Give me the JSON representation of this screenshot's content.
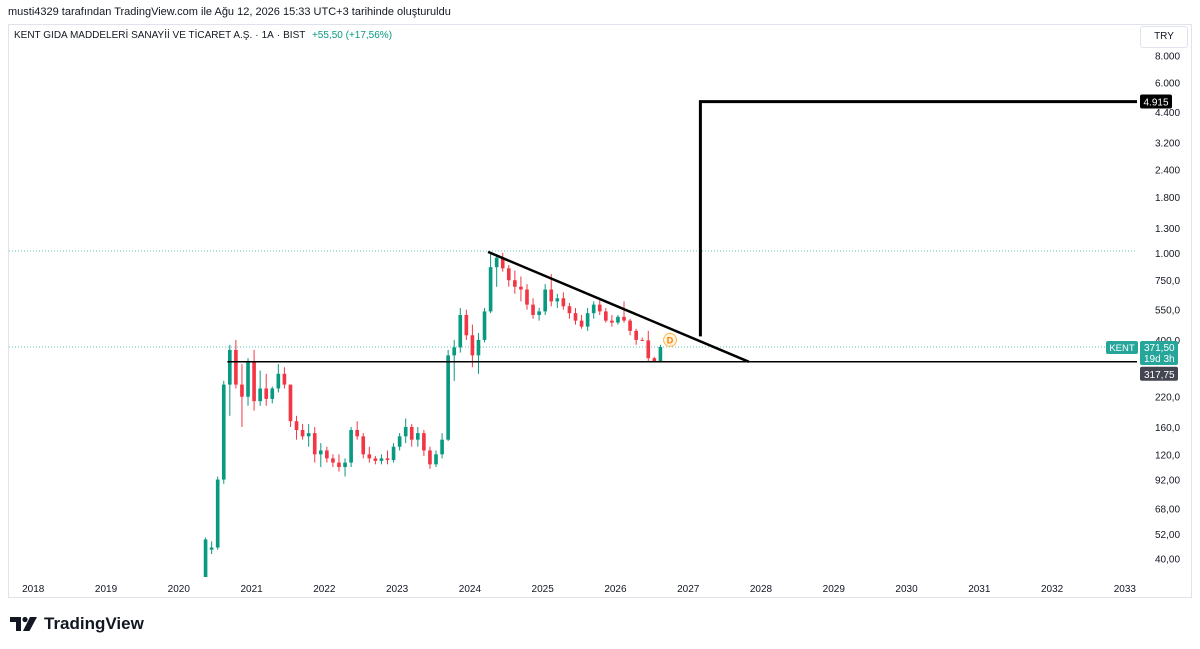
{
  "header": {
    "text": "musti4329 tarafından TradingView.com ile Ağu 12, 2026 15:33 UTC+3 tarihinde oluşturuldu"
  },
  "legend": {
    "title": "KENT GIDA MADDELERİ SANAYİİ VE TİCARET A.Ş.",
    "interval": "1A",
    "exchange": "BIST",
    "change": "+55,50 (+17,56%)"
  },
  "currency_button": "TRY",
  "footer": {
    "brand": "TradingView"
  },
  "colors": {
    "up": "#089981",
    "down": "#f23645",
    "drawing": "#000000",
    "price_line": "#26a69a"
  },
  "price_labels": {
    "symbol": "KENT",
    "last_price": "371,50",
    "countdown": "19d 3h",
    "support": "317,75",
    "target": "4.915",
    "marker": "D"
  },
  "chart_data": {
    "type": "candlestick",
    "y_scale": "log",
    "ylim": [
      33,
      11000
    ],
    "xlim": [
      "2017-09",
      "2033-03"
    ],
    "x_ticks": [
      "2018",
      "2019",
      "2020",
      "2021",
      "2022",
      "2023",
      "2024",
      "2025",
      "2026",
      "2027",
      "2028",
      "2029",
      "2030",
      "2031",
      "2032",
      "2033"
    ],
    "y_ticks": [
      {
        "v": 8000,
        "label": "8.000"
      },
      {
        "v": 6000,
        "label": "6.000"
      },
      {
        "v": 4400,
        "label": "4.400"
      },
      {
        "v": 3200,
        "label": "3.200"
      },
      {
        "v": 2400,
        "label": "2.400"
      },
      {
        "v": 1800,
        "label": "1.800"
      },
      {
        "v": 1300,
        "label": "1.300"
      },
      {
        "v": 1000,
        "label": "1.000"
      },
      {
        "v": 750,
        "label": "750,0"
      },
      {
        "v": 550,
        "label": "550,0"
      },
      {
        "v": 400,
        "label": "400,0"
      },
      {
        "v": 220,
        "label": "220,0"
      },
      {
        "v": 160,
        "label": "160,0"
      },
      {
        "v": 120,
        "label": "120,0"
      },
      {
        "v": 92,
        "label": "92,00"
      },
      {
        "v": 68,
        "label": "68,00"
      },
      {
        "v": 52,
        "label": "52,00"
      },
      {
        "v": 40,
        "label": "40,00"
      }
    ],
    "candles": [
      {
        "d": "2020-05",
        "o": 33,
        "h": 50,
        "l": 33,
        "c": 49
      },
      {
        "d": "2020-06",
        "o": 44,
        "h": 48,
        "l": 42,
        "c": 45
      },
      {
        "d": "2020-07",
        "o": 45,
        "h": 95,
        "l": 44,
        "c": 92
      },
      {
        "d": "2020-08",
        "o": 92,
        "h": 260,
        "l": 88,
        "c": 250
      },
      {
        "d": "2020-09",
        "o": 250,
        "h": 380,
        "l": 180,
        "c": 360
      },
      {
        "d": "2020-10",
        "o": 360,
        "h": 400,
        "l": 240,
        "c": 250
      },
      {
        "d": "2020-11",
        "o": 250,
        "h": 310,
        "l": 160,
        "c": 220
      },
      {
        "d": "2020-12",
        "o": 220,
        "h": 330,
        "l": 200,
        "c": 320
      },
      {
        "d": "2021-01",
        "o": 320,
        "h": 360,
        "l": 190,
        "c": 210
      },
      {
        "d": "2021-02",
        "o": 210,
        "h": 290,
        "l": 200,
        "c": 240
      },
      {
        "d": "2021-03",
        "o": 240,
        "h": 280,
        "l": 200,
        "c": 215
      },
      {
        "d": "2021-04",
        "o": 215,
        "h": 245,
        "l": 205,
        "c": 240
      },
      {
        "d": "2021-05",
        "o": 240,
        "h": 310,
        "l": 230,
        "c": 280
      },
      {
        "d": "2021-06",
        "o": 280,
        "h": 300,
        "l": 240,
        "c": 250
      },
      {
        "d": "2021-07",
        "o": 250,
        "h": 250,
        "l": 160,
        "c": 170
      },
      {
        "d": "2021-08",
        "o": 170,
        "h": 180,
        "l": 140,
        "c": 155
      },
      {
        "d": "2021-09",
        "o": 155,
        "h": 165,
        "l": 140,
        "c": 145
      },
      {
        "d": "2021-10",
        "o": 145,
        "h": 165,
        "l": 130,
        "c": 150
      },
      {
        "d": "2021-11",
        "o": 150,
        "h": 160,
        "l": 110,
        "c": 120
      },
      {
        "d": "2021-12",
        "o": 120,
        "h": 135,
        "l": 105,
        "c": 125
      },
      {
        "d": "2022-01",
        "o": 125,
        "h": 130,
        "l": 110,
        "c": 115
      },
      {
        "d": "2022-02",
        "o": 115,
        "h": 120,
        "l": 105,
        "c": 110
      },
      {
        "d": "2022-03",
        "o": 110,
        "h": 120,
        "l": 100,
        "c": 105
      },
      {
        "d": "2022-04",
        "o": 105,
        "h": 115,
        "l": 95,
        "c": 110
      },
      {
        "d": "2022-05",
        "o": 110,
        "h": 160,
        "l": 105,
        "c": 155
      },
      {
        "d": "2022-06",
        "o": 155,
        "h": 170,
        "l": 140,
        "c": 145
      },
      {
        "d": "2022-07",
        "o": 145,
        "h": 150,
        "l": 115,
        "c": 120
      },
      {
        "d": "2022-08",
        "o": 120,
        "h": 130,
        "l": 110,
        "c": 115
      },
      {
        "d": "2022-09",
        "o": 115,
        "h": 118,
        "l": 108,
        "c": 112
      },
      {
        "d": "2022-10",
        "o": 112,
        "h": 120,
        "l": 108,
        "c": 115
      },
      {
        "d": "2022-11",
        "o": 115,
        "h": 125,
        "l": 108,
        "c": 113
      },
      {
        "d": "2022-12",
        "o": 113,
        "h": 135,
        "l": 110,
        "c": 130
      },
      {
        "d": "2023-01",
        "o": 130,
        "h": 150,
        "l": 125,
        "c": 145
      },
      {
        "d": "2023-02",
        "o": 145,
        "h": 175,
        "l": 135,
        "c": 160
      },
      {
        "d": "2023-03",
        "o": 160,
        "h": 165,
        "l": 130,
        "c": 140
      },
      {
        "d": "2023-04",
        "o": 140,
        "h": 160,
        "l": 130,
        "c": 150
      },
      {
        "d": "2023-05",
        "o": 150,
        "h": 155,
        "l": 118,
        "c": 125
      },
      {
        "d": "2023-06",
        "o": 125,
        "h": 130,
        "l": 103,
        "c": 108
      },
      {
        "d": "2023-07",
        "o": 108,
        "h": 125,
        "l": 105,
        "c": 120
      },
      {
        "d": "2023-08",
        "o": 120,
        "h": 150,
        "l": 115,
        "c": 140
      },
      {
        "d": "2023-09",
        "o": 140,
        "h": 360,
        "l": 138,
        "c": 340
      },
      {
        "d": "2023-10",
        "o": 340,
        "h": 400,
        "l": 260,
        "c": 370
      },
      {
        "d": "2023-11",
        "o": 370,
        "h": 560,
        "l": 350,
        "c": 520
      },
      {
        "d": "2023-12",
        "o": 520,
        "h": 550,
        "l": 400,
        "c": 420
      },
      {
        "d": "2024-01",
        "o": 420,
        "h": 470,
        "l": 300,
        "c": 340
      },
      {
        "d": "2024-02",
        "o": 340,
        "h": 430,
        "l": 280,
        "c": 400
      },
      {
        "d": "2024-03",
        "o": 400,
        "h": 560,
        "l": 390,
        "c": 540
      },
      {
        "d": "2024-04",
        "o": 540,
        "h": 1000,
        "l": 530,
        "c": 860
      },
      {
        "d": "2024-05",
        "o": 860,
        "h": 980,
        "l": 700,
        "c": 950
      },
      {
        "d": "2024-06",
        "o": 950,
        "h": 1000,
        "l": 820,
        "c": 850
      },
      {
        "d": "2024-07",
        "o": 850,
        "h": 880,
        "l": 700,
        "c": 750
      },
      {
        "d": "2024-08",
        "o": 750,
        "h": 830,
        "l": 650,
        "c": 700
      },
      {
        "d": "2024-09",
        "o": 700,
        "h": 780,
        "l": 600,
        "c": 680
      },
      {
        "d": "2024-10",
        "o": 680,
        "h": 720,
        "l": 550,
        "c": 580
      },
      {
        "d": "2024-11",
        "o": 580,
        "h": 620,
        "l": 500,
        "c": 520
      },
      {
        "d": "2024-12",
        "o": 520,
        "h": 560,
        "l": 490,
        "c": 540
      },
      {
        "d": "2025-01",
        "o": 540,
        "h": 720,
        "l": 520,
        "c": 680
      },
      {
        "d": "2025-02",
        "o": 680,
        "h": 800,
        "l": 570,
        "c": 600
      },
      {
        "d": "2025-03",
        "o": 600,
        "h": 650,
        "l": 560,
        "c": 620
      },
      {
        "d": "2025-04",
        "o": 620,
        "h": 660,
        "l": 550,
        "c": 570
      },
      {
        "d": "2025-05",
        "o": 570,
        "h": 590,
        "l": 500,
        "c": 530
      },
      {
        "d": "2025-06",
        "o": 530,
        "h": 560,
        "l": 470,
        "c": 490
      },
      {
        "d": "2025-07",
        "o": 490,
        "h": 520,
        "l": 450,
        "c": 460
      },
      {
        "d": "2025-08",
        "o": 460,
        "h": 560,
        "l": 440,
        "c": 530
      },
      {
        "d": "2025-09",
        "o": 530,
        "h": 600,
        "l": 500,
        "c": 580
      },
      {
        "d": "2025-10",
        "o": 580,
        "h": 610,
        "l": 520,
        "c": 540
      },
      {
        "d": "2025-11",
        "o": 540,
        "h": 560,
        "l": 480,
        "c": 490
      },
      {
        "d": "2025-12",
        "o": 490,
        "h": 520,
        "l": 460,
        "c": 480
      },
      {
        "d": "2026-01",
        "o": 480,
        "h": 520,
        "l": 470,
        "c": 510
      },
      {
        "d": "2026-02",
        "o": 510,
        "h": 600,
        "l": 480,
        "c": 490
      },
      {
        "d": "2026-03",
        "o": 490,
        "h": 500,
        "l": 420,
        "c": 440
      },
      {
        "d": "2026-04",
        "o": 440,
        "h": 450,
        "l": 380,
        "c": 400
      },
      {
        "d": "2026-05",
        "o": 400,
        "h": 410,
        "l": 395,
        "c": 398
      },
      {
        "d": "2026-06",
        "o": 398,
        "h": 440,
        "l": 320,
        "c": 330
      },
      {
        "d": "2026-07",
        "o": 330,
        "h": 335,
        "l": 315,
        "c": 316
      },
      {
        "d": "2026-08",
        "o": 316,
        "h": 380,
        "l": 315,
        "c": 371.5
      }
    ],
    "drawings": {
      "support_line": {
        "price": 317.75,
        "from": "2020-09",
        "to": "2033-03"
      },
      "trendline": {
        "from": {
          "d": "2024-04",
          "p": 1010
        },
        "to": {
          "d": "2027-11",
          "p": 317.75
        }
      },
      "target_line": [
        {
          "d": "2027-03",
          "p": 415
        },
        {
          "d": "2027-03",
          "p": 4915
        },
        {
          "d": "2033-03",
          "p": 4915
        }
      ],
      "dotted_levels": [
        1020,
        371.5
      ],
      "marker": {
        "d": "2026-10",
        "p": 400
      }
    }
  }
}
